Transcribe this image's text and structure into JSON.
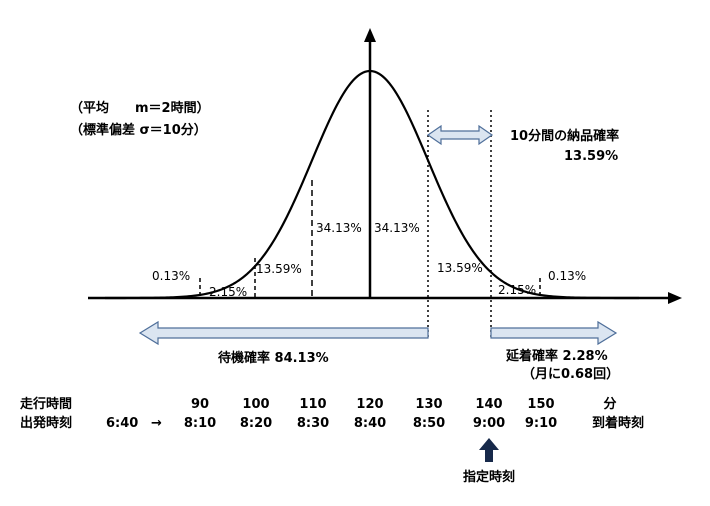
{
  "params": {
    "mean_line": "（平均　　m＝2時間）",
    "sd_line": "（標準偏差 σ＝10分）"
  },
  "band_labels": {
    "p013_left": "0.13%",
    "p215_left": "2.15%",
    "p1359_left": "13.59%",
    "p3413_left": "34.13%",
    "p3413_right": "34.13%",
    "p1359_right": "13.59%",
    "p215_right": "2.15%",
    "p013_right": "0.13%"
  },
  "annotations": {
    "ten_min_title": "10分間の納品確率",
    "ten_min_value": "13.59%",
    "wait": "待機確率 84.13%",
    "delay": "延着確率 2.28%",
    "delay_monthly": "（月に0.68回）",
    "designated": "指定時刻"
  },
  "table": {
    "row1_label": "走行時間",
    "row2_label": "出発時刻",
    "depart": "6:40",
    "arrow": "→",
    "unit": "分",
    "arrival_label": "到着時刻",
    "minutes": [
      "90",
      "100",
      "110",
      "120",
      "130",
      "140",
      "150"
    ],
    "times": [
      "8:10",
      "8:20",
      "8:30",
      "8:40",
      "8:50",
      "9:00",
      "9:10"
    ]
  },
  "chart_data": {
    "type": "line",
    "distribution": "normal",
    "mean": 120,
    "sd": 10,
    "x_unit": "分",
    "band_percentages": [
      0.13,
      2.15,
      13.59,
      34.13,
      34.13,
      13.59,
      2.15,
      0.13
    ],
    "colors": {
      "arrow_fill": "#dbe5f1",
      "arrow_stroke": "#4f6f9a",
      "marker": "#17294a"
    }
  }
}
